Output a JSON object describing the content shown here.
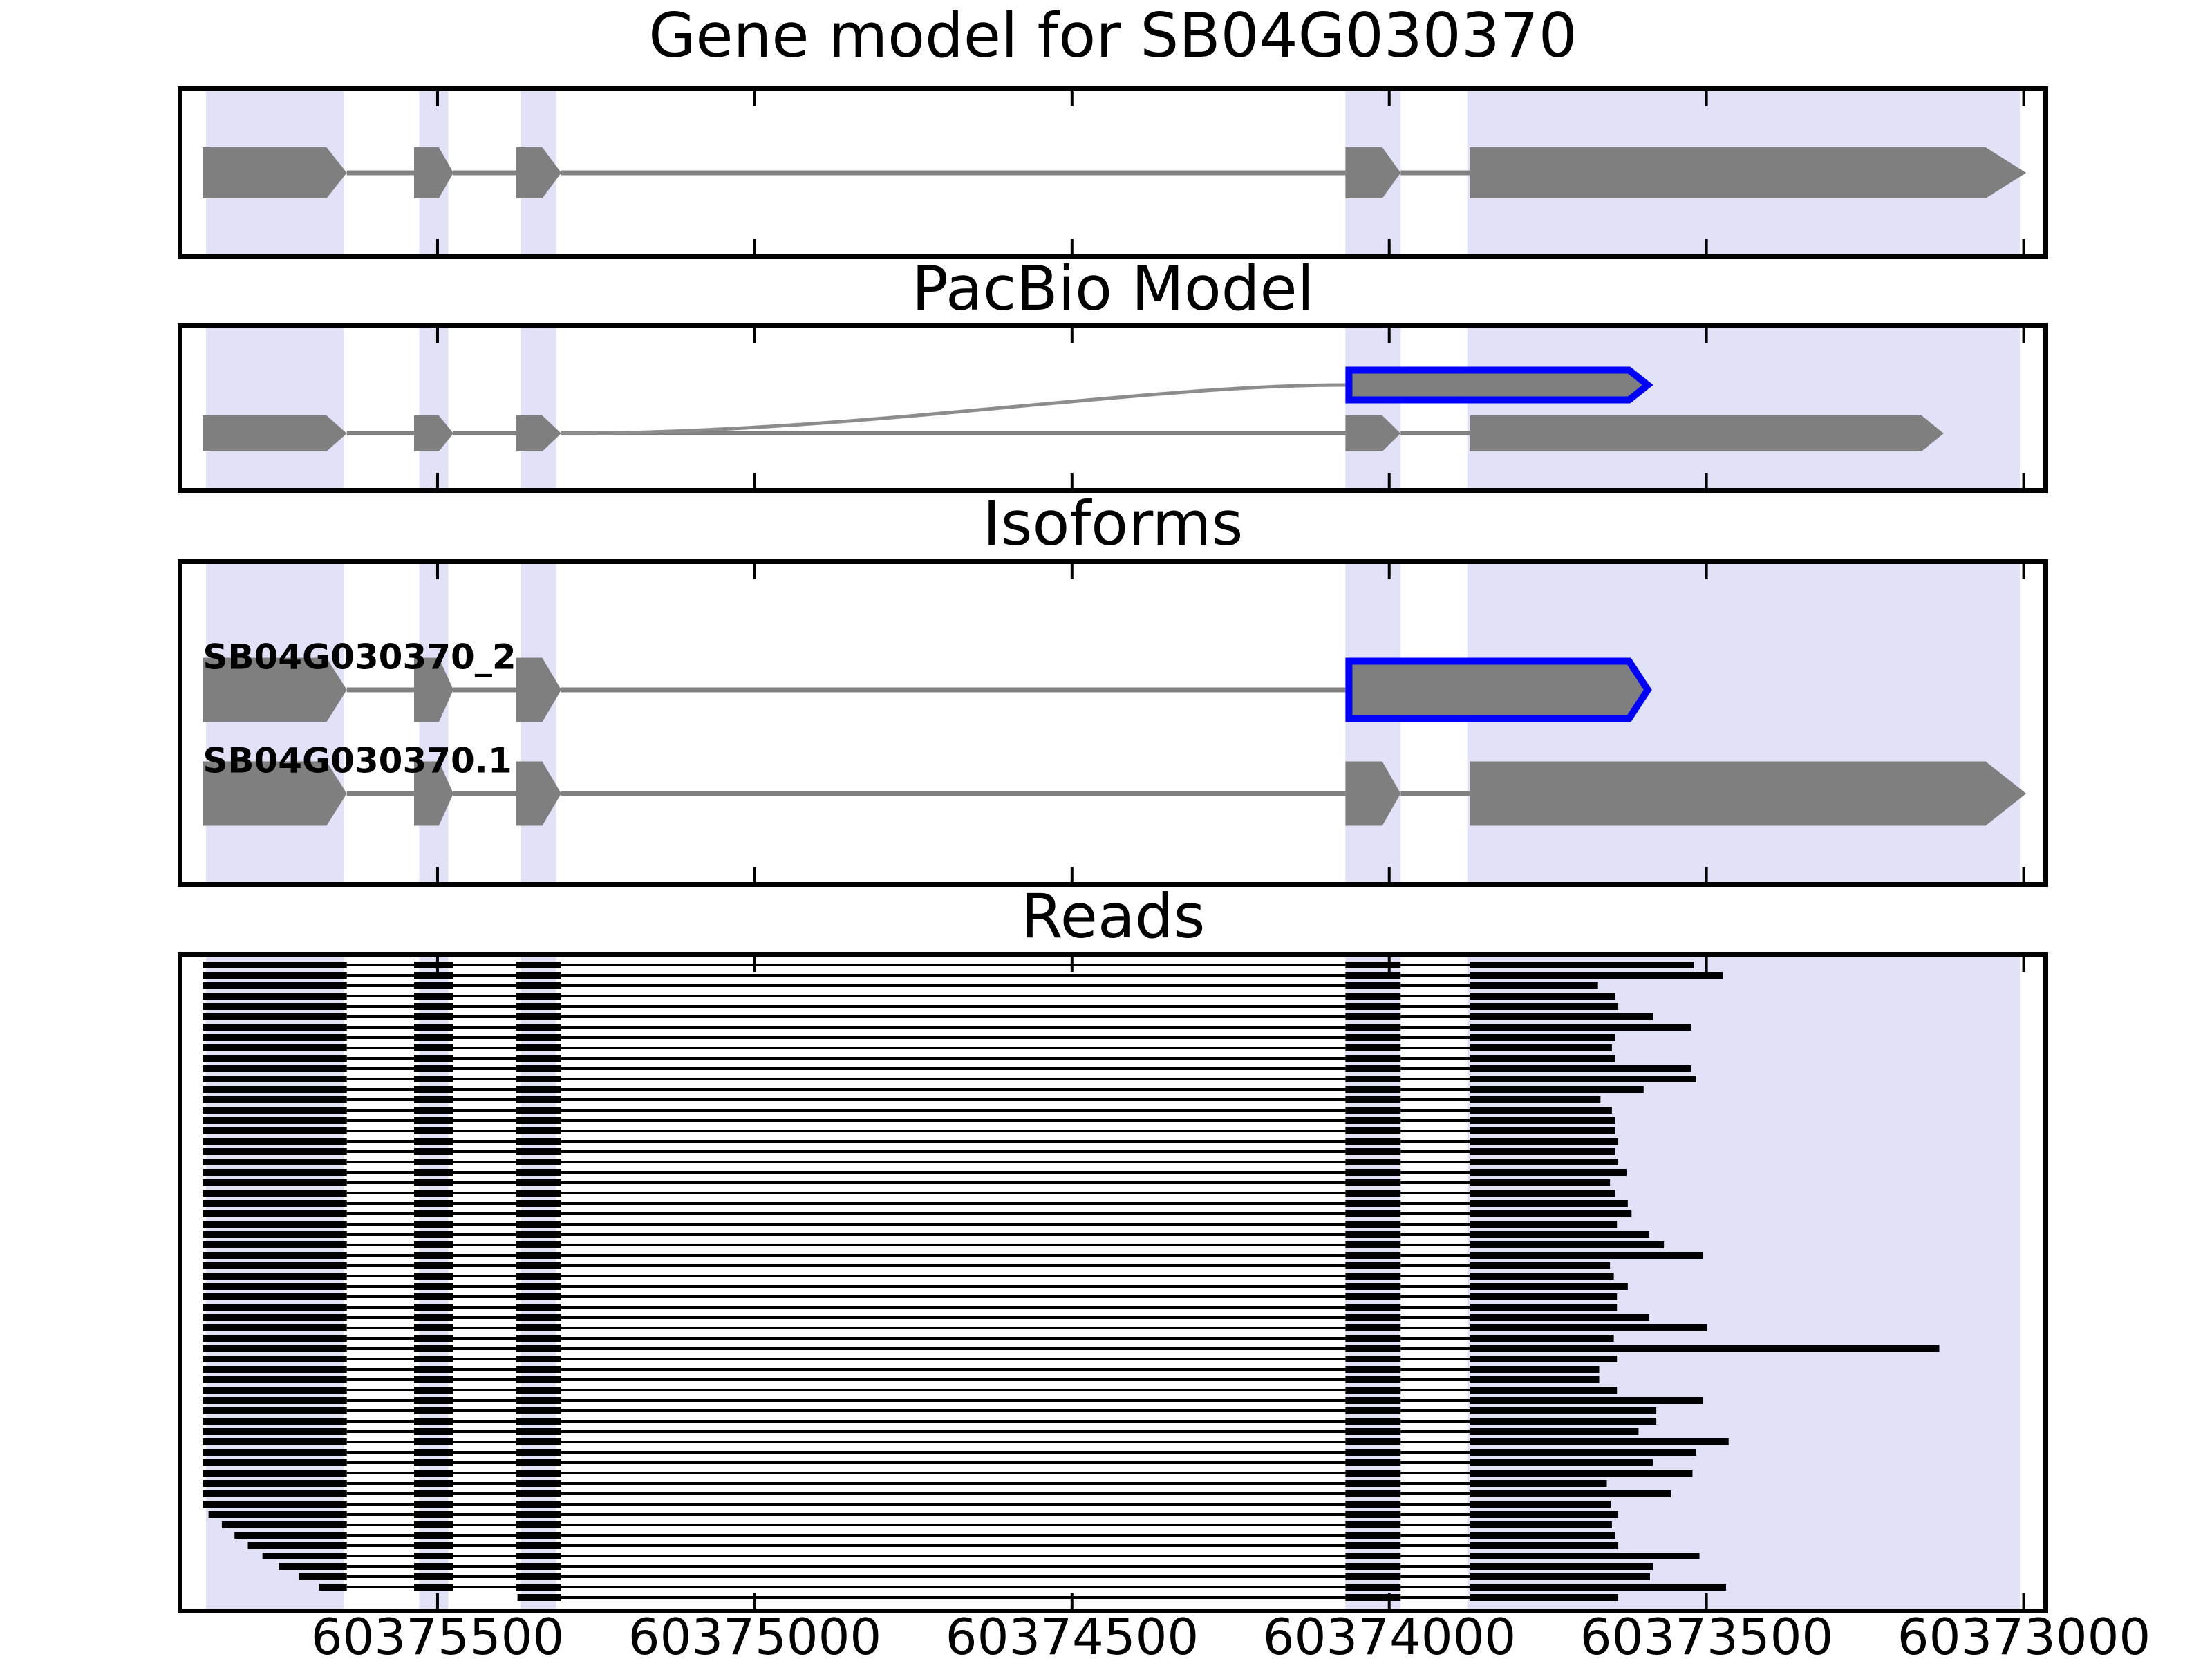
{
  "styles": {
    "exon_color": "#7f7f7f",
    "line_color": "#808080",
    "arc_color": "#8c8c8c",
    "band_color": "#e1e1f8",
    "highlight_outline": "#0000ff",
    "read_color": "#000000",
    "border_color": "#000000",
    "text_color": "#000000"
  },
  "chart_data": {
    "type": "gene-structure-plot",
    "gene_id": "SB04G030370",
    "xaxis": {
      "view_start": 60375902,
      "view_end": 60372969,
      "direction": "decreasing",
      "ticks": [
        60375500,
        60375000,
        60374500,
        60374000,
        60373500,
        60373000
      ],
      "tick_labels": [
        "60375500",
        "60375000",
        "60374500",
        "60374000",
        "60373500",
        "60373000"
      ]
    },
    "highlight_regions": [
      {
        "start": 60375865,
        "end": 60375648
      },
      {
        "start": 60375529,
        "end": 60375483
      },
      {
        "start": 60375369,
        "end": 60375313
      },
      {
        "start": 60374069,
        "end": 60373982
      },
      {
        "start": 60373877,
        "end": 60373006
      }
    ],
    "panels": [
      {
        "id": "gene-model",
        "title": "Gene model for SB04G030370",
        "tracks": [
          {
            "exons": [
              {
                "start": 60375870,
                "end": 60375675,
                "tip": 60375643
              },
              {
                "start": 60375537,
                "end": 60375498,
                "tip": 60375475
              },
              {
                "start": 60375376,
                "end": 60375335,
                "tip": 60375305
              },
              {
                "start": 60374069,
                "end": 60374011,
                "tip": 60373982
              },
              {
                "start": 60373873,
                "end": 60373060,
                "tip": 60372996
              }
            ]
          }
        ]
      },
      {
        "id": "pacbio",
        "title": "PacBio Model",
        "tracks": [
          {
            "exons": [
              {
                "start": 60375870,
                "end": 60375675,
                "tip": 60375643
              },
              {
                "start": 60375537,
                "end": 60375498,
                "tip": 60375475
              },
              {
                "start": 60375376,
                "end": 60375335,
                "tip": 60375305
              },
              {
                "start": 60374069,
                "end": 60374011,
                "tip": 60373982
              },
              {
                "start": 60373873,
                "end": 60373161,
                "tip": 60373126
              }
            ]
          },
          {
            "exons": [
              {
                "start": 60374069,
                "end": 60373622,
                "tip": 60373587,
                "outline": true
              }
            ],
            "arc": {
              "from": 60375305,
              "to": 60374069
            }
          }
        ]
      },
      {
        "id": "isoforms",
        "title": "Isoforms",
        "tracks": [
          {
            "label": "SB04G030370_2",
            "exons": [
              {
                "start": 60375870,
                "end": 60375675,
                "tip": 60375643
              },
              {
                "start": 60375537,
                "end": 60375498,
                "tip": 60375475
              },
              {
                "start": 60375376,
                "end": 60375335,
                "tip": 60375305
              },
              {
                "start": 60374069,
                "end": 60373622,
                "tip": 60373587,
                "outline": true
              }
            ]
          },
          {
            "label": "SB04G030370.1",
            "exons": [
              {
                "start": 60375870,
                "end": 60375675,
                "tip": 60375643
              },
              {
                "start": 60375537,
                "end": 60375498,
                "tip": 60375475
              },
              {
                "start": 60375376,
                "end": 60375335,
                "tip": 60375305
              },
              {
                "start": 60374069,
                "end": 60374011,
                "tip": 60373982
              },
              {
                "start": 60373873,
                "end": 60373060,
                "tip": 60372996
              }
            ]
          }
        ]
      },
      {
        "id": "reads",
        "title": "Reads"
      }
    ],
    "reads_default_start": 60375870,
    "read_blocks": [
      {
        "start": 60375870,
        "end": 60375643
      },
      {
        "start": 60375537,
        "end": 60375475
      },
      {
        "start": 60375376,
        "end": 60375305
      },
      {
        "start": 60374069,
        "end": 60373982
      },
      {
        "start": 60373873,
        "end": null
      }
    ],
    "reads": [
      {
        "end": 60373520
      },
      {
        "end": 60373474
      },
      {
        "end": 60373671
      },
      {
        "end": 60373644
      },
      {
        "end": 60373639
      },
      {
        "end": 60373584
      },
      {
        "end": 60373524
      },
      {
        "end": 60373644
      },
      {
        "end": 60373649
      },
      {
        "end": 60373644
      },
      {
        "end": 60373524
      },
      {
        "end": 60373516
      },
      {
        "end": 60373599
      },
      {
        "end": 60373667
      },
      {
        "end": 60373649
      },
      {
        "end": 60373644
      },
      {
        "end": 60373644
      },
      {
        "end": 60373639
      },
      {
        "end": 60373644
      },
      {
        "end": 60373639
      },
      {
        "end": 60373626
      },
      {
        "end": 60373652
      },
      {
        "end": 60373644
      },
      {
        "end": 60373624
      },
      {
        "end": 60373618
      },
      {
        "end": 60373641
      },
      {
        "end": 60373590
      },
      {
        "end": 60373567
      },
      {
        "end": 60373505
      },
      {
        "end": 60373652
      },
      {
        "end": 60373646
      },
      {
        "end": 60373624
      },
      {
        "end": 60373641
      },
      {
        "end": 60373641
      },
      {
        "end": 60373590
      },
      {
        "end": 60373499
      },
      {
        "end": 60373646
      },
      {
        "end": 60373133
      },
      {
        "end": 60373641
      },
      {
        "end": 60373669
      },
      {
        "end": 60373669
      },
      {
        "end": 60373641
      },
      {
        "end": 60373505
      },
      {
        "end": 60373579
      },
      {
        "end": 60373579
      },
      {
        "end": 60373607
      },
      {
        "end": 60373465
      },
      {
        "end": 60373516
      },
      {
        "end": 60373584
      },
      {
        "end": 60373522
      },
      {
        "end": 60373657
      },
      {
        "end": 60373556
      },
      {
        "end": 60373651
      },
      {
        "start": 60375861,
        "end": 60373639
      },
      {
        "start": 60375840,
        "end": 60373649
      },
      {
        "start": 60375820,
        "end": 60373644
      },
      {
        "start": 60375799,
        "end": 60373639
      },
      {
        "start": 60375776,
        "end": 60373511
      },
      {
        "start": 60375750,
        "end": 60373584
      },
      {
        "start": 60375719,
        "end": 60373589
      },
      {
        "start": 60375687,
        "end": 60373469
      },
      {
        "start": 60375374,
        "end": 60373639
      }
    ]
  }
}
